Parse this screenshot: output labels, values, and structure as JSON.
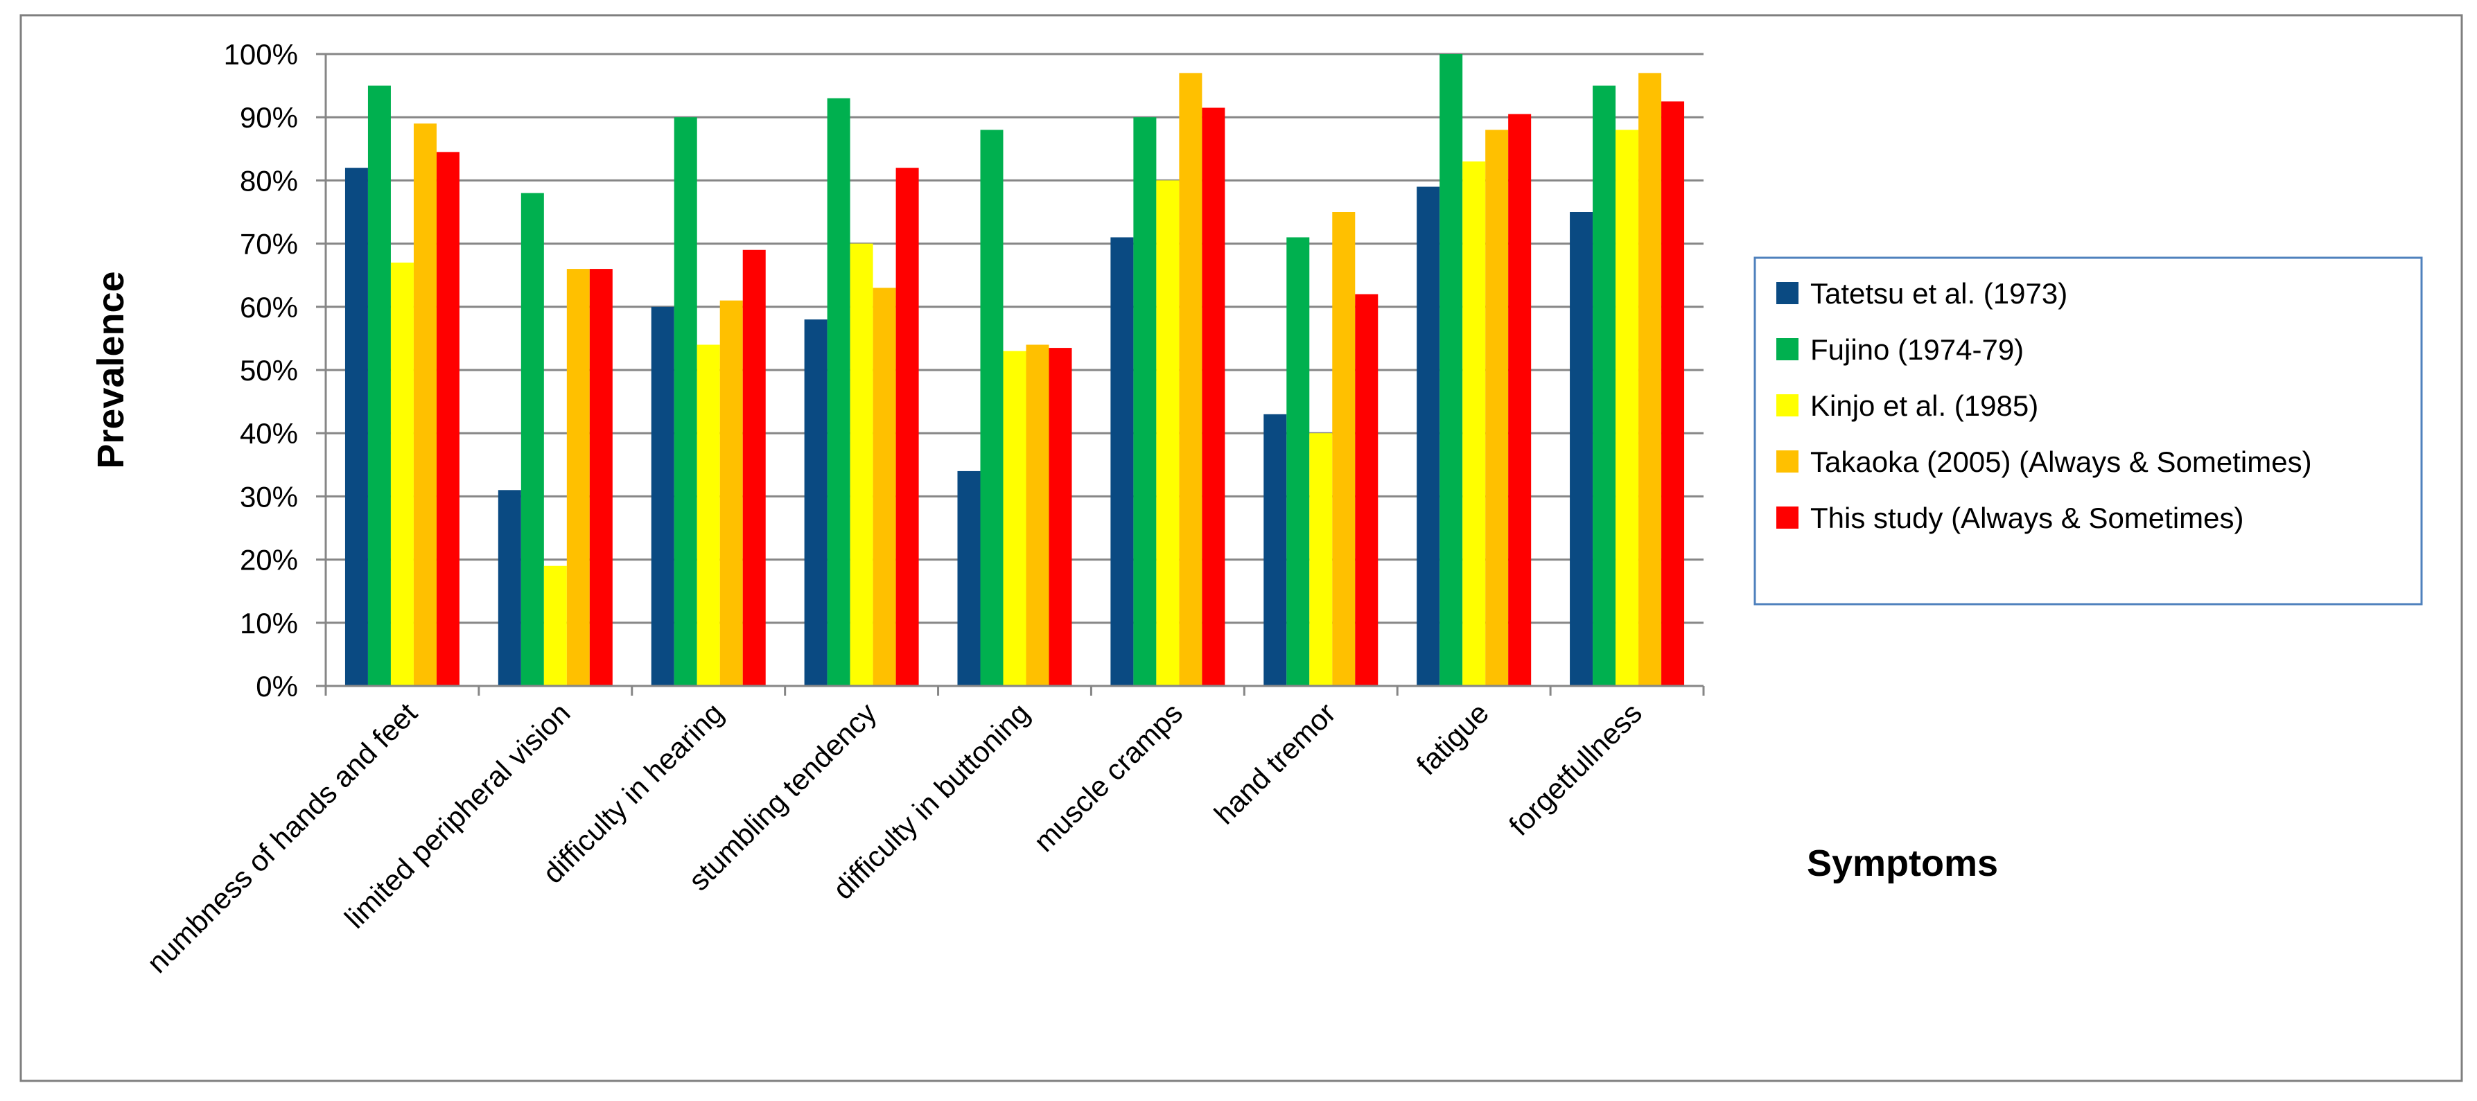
{
  "chart_data": {
    "type": "bar",
    "title": "",
    "xlabel": "Symptoms",
    "ylabel": "Prevalence",
    "ylim": [
      0,
      100
    ],
    "y_ticks": [
      "0%",
      "10%",
      "20%",
      "30%",
      "40%",
      "50%",
      "60%",
      "70%",
      "80%",
      "90%",
      "100%"
    ],
    "grid": true,
    "legend_position": "right",
    "categories": [
      "numbness of hands and feet",
      "limited peripheral vision",
      "difficulty in hearing",
      "stumbling tendency",
      "difficulty in buttoning",
      "muscle cramps",
      "hand tremor",
      "fatigue",
      "forgetfullness"
    ],
    "series": [
      {
        "name": "Tatetsu et al. (1973)",
        "color": "#0a4a82",
        "values": [
          82,
          31,
          60,
          58,
          34,
          71,
          43,
          79,
          75
        ]
      },
      {
        "name": "Fujino (1974-79)",
        "color": "#00b04f",
        "values": [
          95,
          78,
          90,
          93,
          88,
          90,
          71,
          100,
          95
        ]
      },
      {
        "name": "Kinjo et al. (1985)",
        "color": "#ffff00",
        "values": [
          67,
          19,
          54,
          70,
          53,
          80,
          40,
          83,
          88
        ]
      },
      {
        "name": "Takaoka (2005) (Always & Sometimes)",
        "color": "#ffc000",
        "values": [
          89,
          66,
          61,
          63,
          54,
          97,
          75,
          88,
          97
        ]
      },
      {
        "name": "This study (Always & Sometimes)",
        "color": "#ff0000",
        "values": [
          84.5,
          66,
          69,
          82,
          53.5,
          91.5,
          62,
          90.5,
          92.5
        ]
      }
    ]
  }
}
